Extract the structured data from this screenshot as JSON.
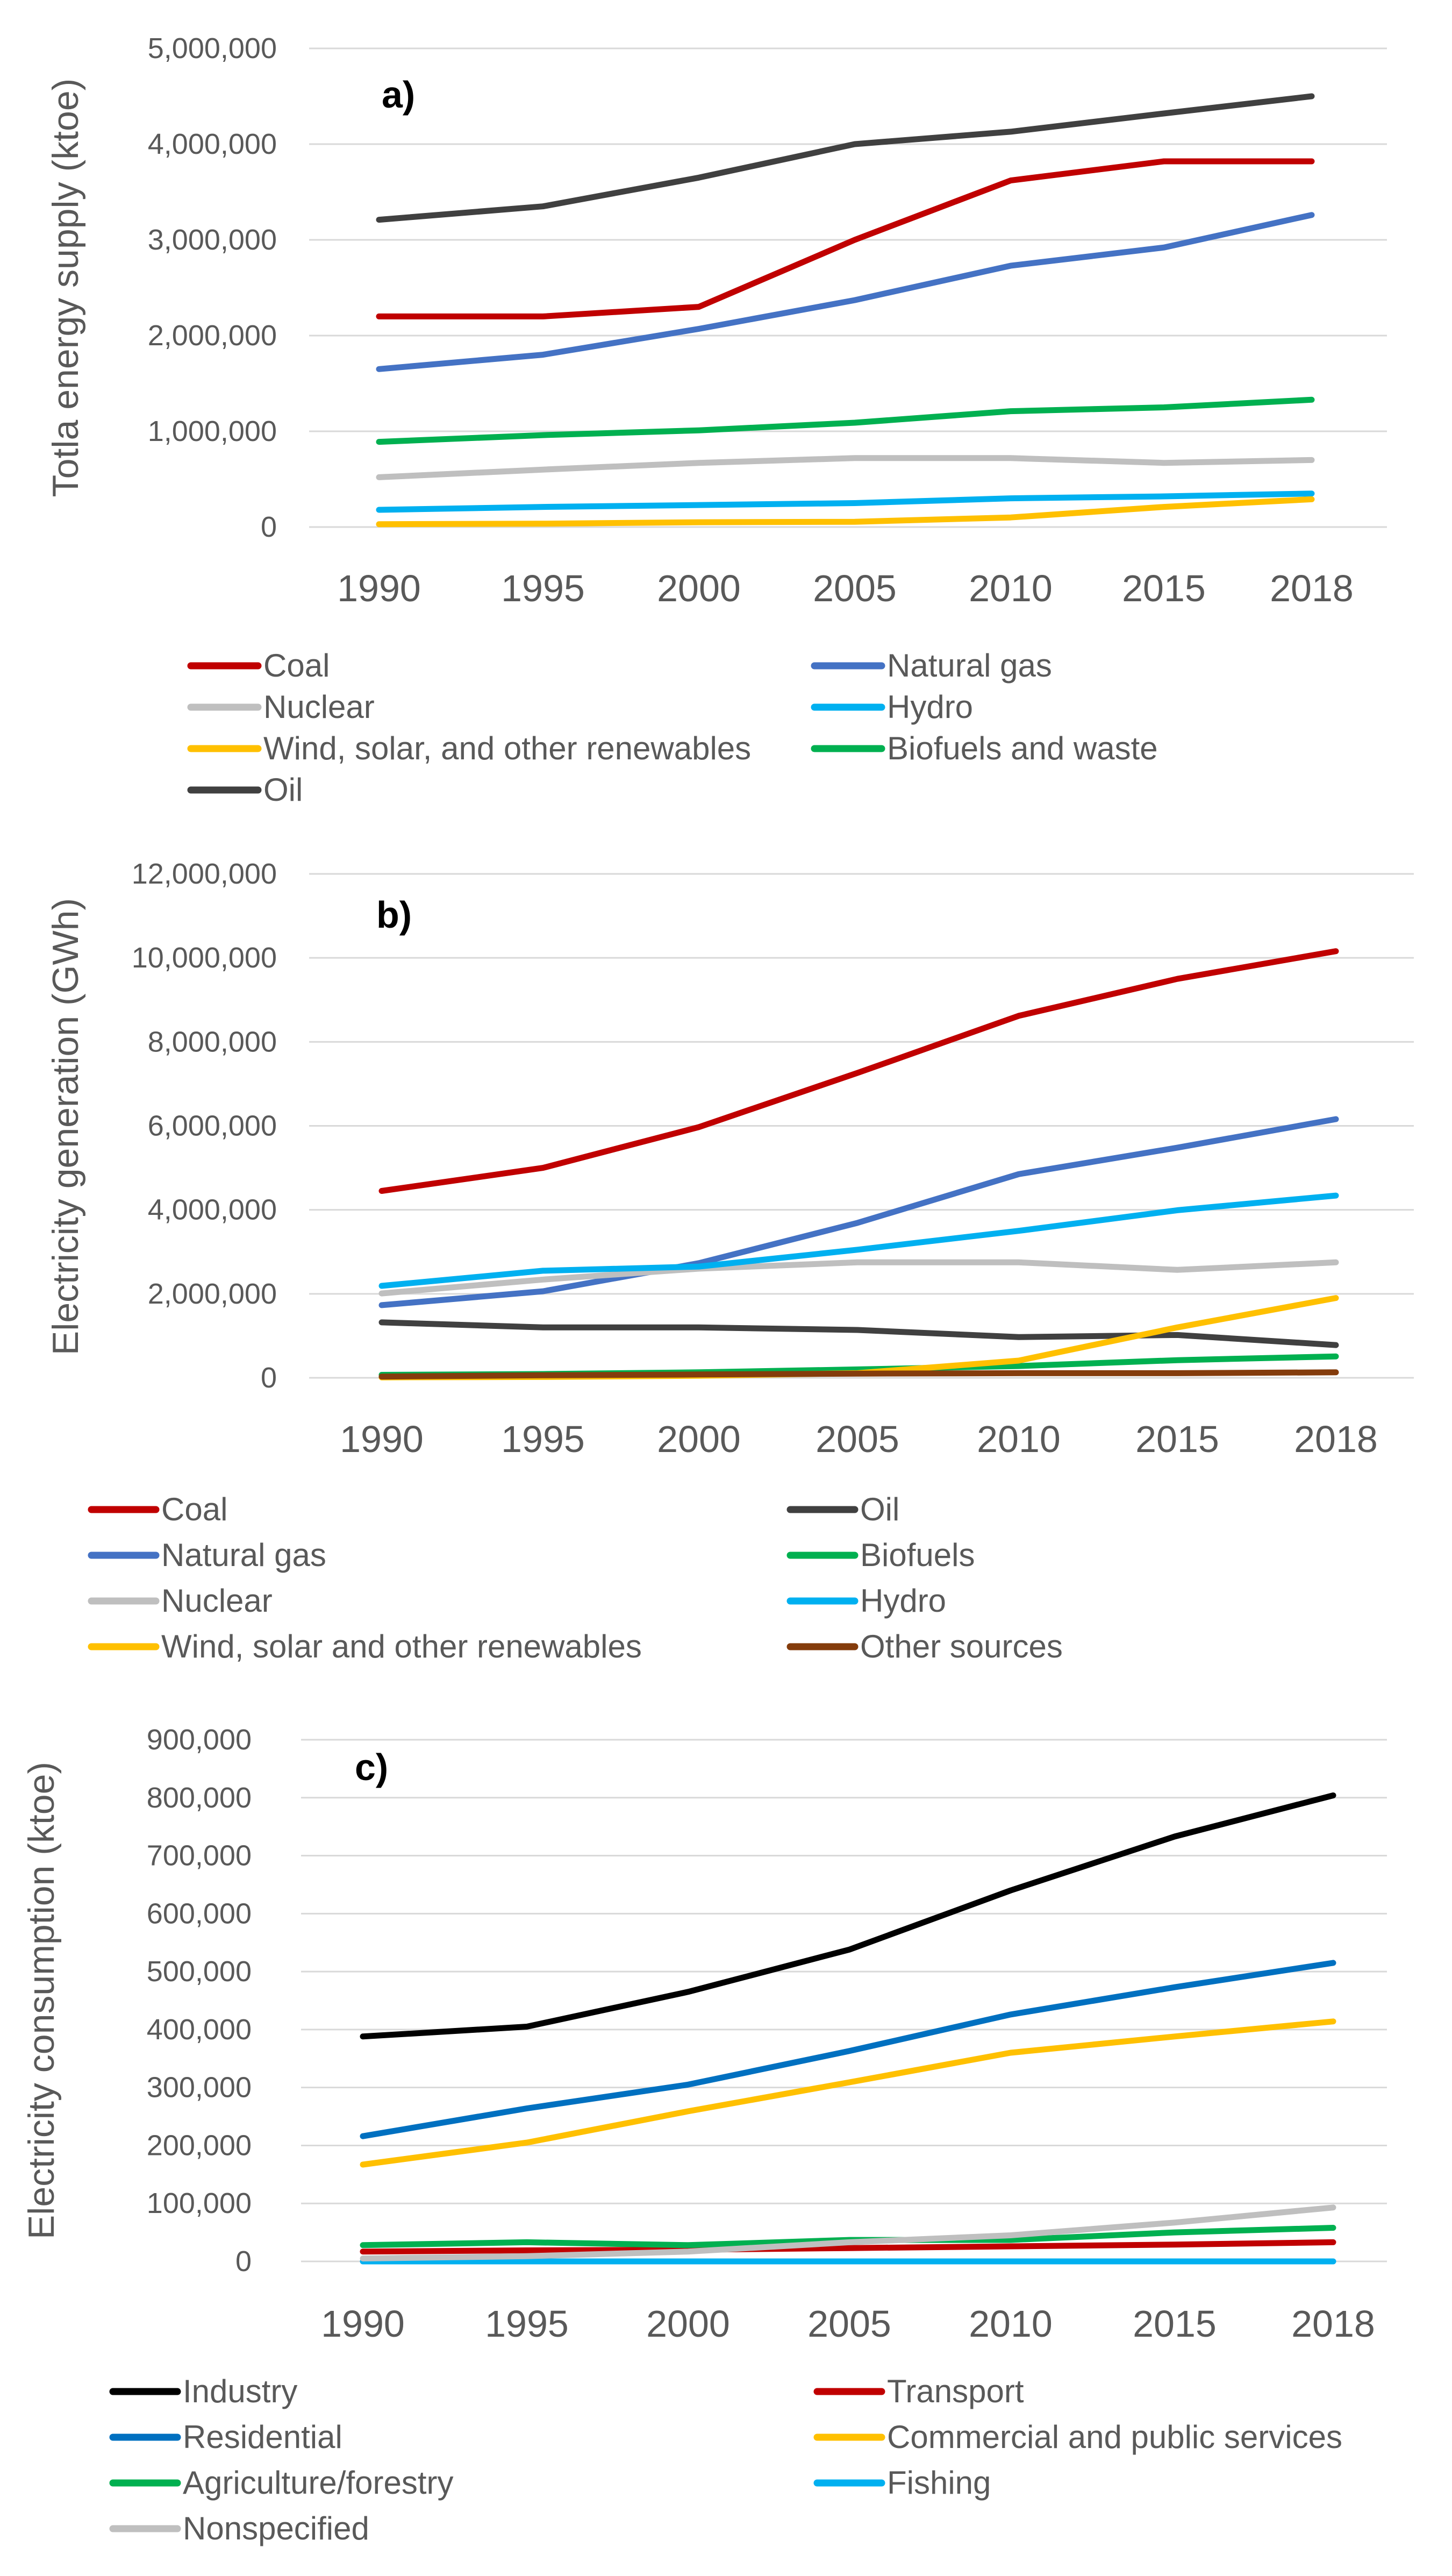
{
  "chart_data": [
    {
      "type": "line",
      "panel_label": "a)",
      "ylabel": "Totla energy supply (ktoe)",
      "xlabel": "",
      "categories": [
        "1990",
        "1995",
        "2000",
        "2005",
        "2010",
        "2015",
        "2018"
      ],
      "ylim": [
        0,
        5000000
      ],
      "yticks": [
        0,
        1000000,
        2000000,
        3000000,
        4000000,
        5000000
      ],
      "ytick_labels": [
        "0",
        "1,000,000",
        "2,000,000",
        "3,000,000",
        "4,000,000",
        "5,000,000"
      ],
      "grid": true,
      "legend_position": "bottom",
      "series": [
        {
          "name": "Coal",
          "color": "#c00000",
          "values": [
            2200000,
            2200000,
            2300000,
            3000000,
            3620000,
            3820000,
            3820000
          ]
        },
        {
          "name": "Natural gas",
          "color": "#4472c4",
          "values": [
            1650000,
            1800000,
            2070000,
            2370000,
            2730000,
            2920000,
            3260000
          ]
        },
        {
          "name": "Nuclear",
          "color": "#bfbfbf",
          "values": [
            520000,
            600000,
            670000,
            720000,
            720000,
            670000,
            700000
          ]
        },
        {
          "name": "Hydro",
          "color": "#00b0f0",
          "values": [
            180000,
            210000,
            230000,
            250000,
            300000,
            320000,
            350000
          ]
        },
        {
          "name": "Wind, solar, and other renewables",
          "color": "#ffc000",
          "values": [
            30000,
            35000,
            50000,
            55000,
            100000,
            210000,
            290000
          ]
        },
        {
          "name": "Biofuels and waste",
          "color": "#00b050",
          "values": [
            890000,
            960000,
            1010000,
            1090000,
            1210000,
            1250000,
            1330000
          ]
        },
        {
          "name": "Oil",
          "color": "#404040",
          "values": [
            3210000,
            3350000,
            3650000,
            4000000,
            4130000,
            4320000,
            4500000
          ]
        }
      ]
    },
    {
      "type": "line",
      "panel_label": "b)",
      "ylabel": "Electricity generation (GWh)",
      "xlabel": "",
      "categories": [
        "1990",
        "1995",
        "2000",
        "2005",
        "2010",
        "2015",
        "2018"
      ],
      "ylim": [
        0,
        12000000
      ],
      "yticks": [
        0,
        2000000,
        4000000,
        6000000,
        8000000,
        10000000,
        12000000
      ],
      "ytick_labels": [
        "0",
        "2,000,000",
        "4,000,000",
        "6,000,000",
        "8,000,000",
        "10,000,000",
        "12,000,000"
      ],
      "grid": true,
      "legend_position": "bottom",
      "series": [
        {
          "name": "Coal",
          "color": "#c00000",
          "values": [
            4450000,
            5000000,
            5970000,
            7260000,
            8620000,
            9500000,
            10160000
          ]
        },
        {
          "name": "Oil",
          "color": "#404040",
          "values": [
            1320000,
            1200000,
            1200000,
            1140000,
            970000,
            1020000,
            780000
          ]
        },
        {
          "name": "Natural gas",
          "color": "#4472c4",
          "values": [
            1730000,
            2060000,
            2730000,
            3690000,
            4850000,
            5480000,
            6160000
          ]
        },
        {
          "name": "Biofuels",
          "color": "#00b050",
          "values": [
            70000,
            90000,
            130000,
            200000,
            280000,
            420000,
            510000
          ]
        },
        {
          "name": "Nuclear",
          "color": "#bfbfbf",
          "values": [
            2010000,
            2340000,
            2600000,
            2750000,
            2750000,
            2570000,
            2750000
          ]
        },
        {
          "name": "Hydro",
          "color": "#00b0f0",
          "values": [
            2190000,
            2550000,
            2650000,
            3050000,
            3500000,
            3990000,
            4340000
          ]
        },
        {
          "name": "Wind, solar and other renewables",
          "color": "#ffc000",
          "values": [
            10000,
            20000,
            50000,
            110000,
            410000,
            1200000,
            1900000
          ]
        },
        {
          "name": "Other sources",
          "color": "#843c0c",
          "values": [
            30000,
            60000,
            80000,
            100000,
            110000,
            110000,
            130000
          ]
        }
      ]
    },
    {
      "type": "line",
      "panel_label": "c)",
      "ylabel": "Electricity consumption (ktoe)",
      "xlabel": "",
      "categories": [
        "1990",
        "1995",
        "2000",
        "2005",
        "2010",
        "2015",
        "2018"
      ],
      "ylim": [
        0,
        900000
      ],
      "yticks": [
        0,
        100000,
        200000,
        300000,
        400000,
        500000,
        600000,
        700000,
        800000,
        900000
      ],
      "ytick_labels": [
        "0",
        "100,000",
        "200,000",
        "300,000",
        "400,000",
        "500,000",
        "600,000",
        "700,000",
        "800,000",
        "900,000"
      ],
      "grid": true,
      "legend_position": "bottom",
      "series": [
        {
          "name": "Industry",
          "color": "#000000",
          "values": [
            388000,
            405000,
            465000,
            538000,
            640000,
            733000,
            804000
          ]
        },
        {
          "name": "Transport",
          "color": "#c00000",
          "values": [
            17000,
            19000,
            20000,
            23000,
            26000,
            29000,
            33000
          ]
        },
        {
          "name": "Residential",
          "color": "#0070c0",
          "values": [
            216000,
            264000,
            305000,
            363000,
            426000,
            473000,
            515000
          ]
        },
        {
          "name": "Commercial and public services",
          "color": "#ffc000",
          "values": [
            167000,
            205000,
            259000,
            309000,
            360000,
            388000,
            414000
          ]
        },
        {
          "name": "Agriculture/forestry",
          "color": "#00b050",
          "values": [
            28000,
            33000,
            28000,
            37000,
            37000,
            50000,
            58000
          ]
        },
        {
          "name": "Fishing",
          "color": "#00b0f0",
          "values": [
            0,
            0,
            0,
            0,
            0,
            0,
            0
          ]
        },
        {
          "name": "Nonspecified",
          "color": "#bfbfbf",
          "values": [
            5000,
            9000,
            17000,
            33000,
            45000,
            67000,
            93000
          ]
        }
      ]
    }
  ]
}
